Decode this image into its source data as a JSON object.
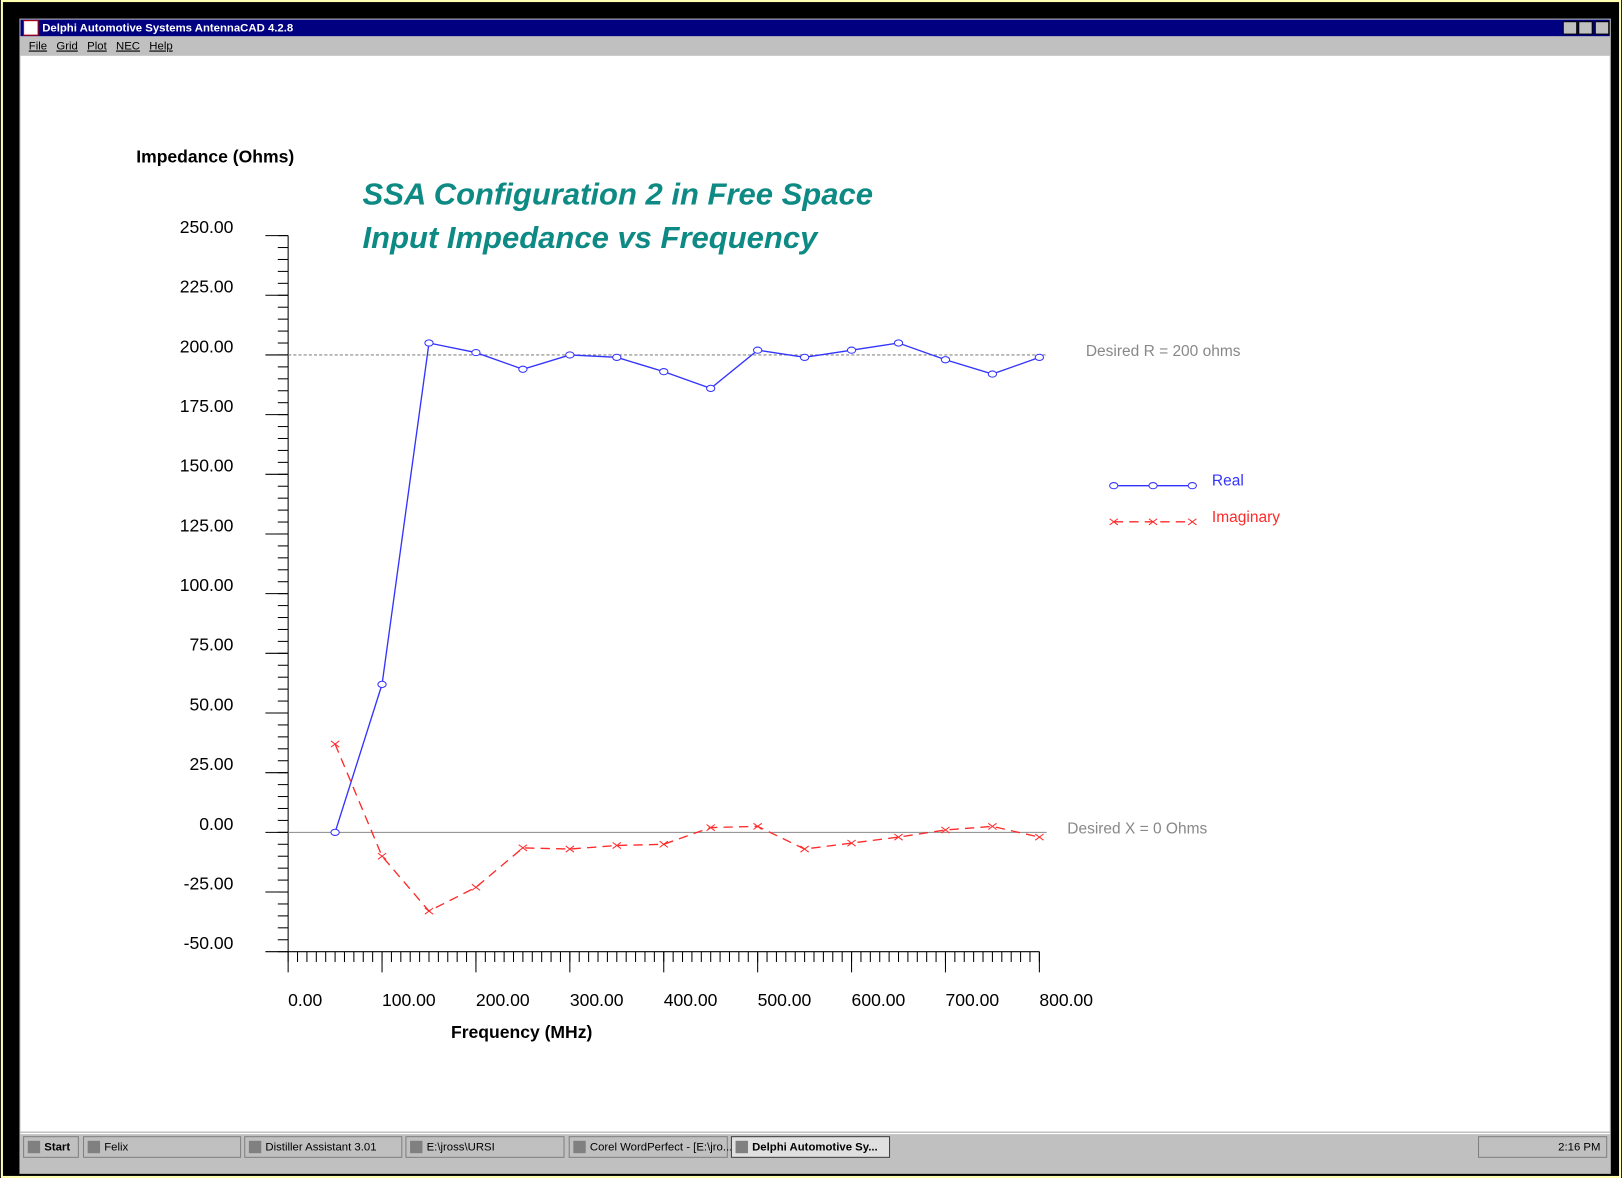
{
  "window": {
    "title": "Delphi Automotive Systems AntennaCAD 4.2.8",
    "menu": [
      "File",
      "Grid",
      "Plot",
      "NEC",
      "Help"
    ]
  },
  "chart_data": {
    "type": "line",
    "title": "SSA Configuration 2 in Free Space",
    "subtitle": "Input Impedance vs Frequency",
    "y_label": "Impedance (Ohms)",
    "x_label": "Frequency (MHz)",
    "x": [
      50,
      100,
      150,
      200,
      250,
      300,
      350,
      400,
      450,
      500,
      550,
      600,
      650,
      700,
      750,
      800
    ],
    "series": [
      {
        "name": "Real",
        "color": "#3333ff",
        "marker": "circle",
        "dash": false,
        "values": [
          0,
          62,
          205,
          201,
          194,
          200,
          199,
          193,
          186,
          202,
          199,
          202,
          205,
          198,
          192,
          199
        ]
      },
      {
        "name": "Imaginary",
        "color": "#ff2a2a",
        "marker": "x",
        "dash": true,
        "values": [
          37,
          -10,
          -33,
          -23,
          -6.5,
          -7,
          -5.5,
          -5,
          2,
          2.5,
          -7,
          -4.5,
          -2,
          1,
          2.5,
          -2
        ]
      }
    ],
    "reference_lines": [
      {
        "value": 200,
        "label": "Desired R = 200 ohms",
        "dash": true
      },
      {
        "value": 0,
        "label": "Desired X = 0 Ohms",
        "dash": false
      }
    ],
    "xlim": [
      0,
      800
    ],
    "xticks": [
      {
        "value": 0,
        "label": "0.00"
      },
      {
        "value": 100,
        "label": "100.00"
      },
      {
        "value": 200,
        "label": "200.00"
      },
      {
        "value": 300,
        "label": "300.00"
      },
      {
        "value": 400,
        "label": "400.00"
      },
      {
        "value": 500,
        "label": "500.00"
      },
      {
        "value": 600,
        "label": "600.00"
      },
      {
        "value": 700,
        "label": "700.00"
      },
      {
        "value": 800,
        "label": "800.00"
      }
    ],
    "ylim": [
      -50,
      250
    ],
    "yticks": [
      {
        "value": -50,
        "label": "-50.00"
      },
      {
        "value": -25,
        "label": "-25.00"
      },
      {
        "value": 0,
        "label": "0.00"
      },
      {
        "value": 25,
        "label": "25.00"
      },
      {
        "value": 50,
        "label": "50.00"
      },
      {
        "value": 75,
        "label": "75.00"
      },
      {
        "value": 100,
        "label": "100.00"
      },
      {
        "value": 125,
        "label": "125.00"
      },
      {
        "value": 150,
        "label": "150.00"
      },
      {
        "value": 175,
        "label": "175.00"
      },
      {
        "value": 200,
        "label": "200.00"
      },
      {
        "value": 225,
        "label": "225.00"
      },
      {
        "value": 250,
        "label": "250.00"
      }
    ],
    "grid": false
  },
  "taskbar": {
    "start": "Start",
    "items": [
      "Felix",
      "Distiller Assistant 3.01",
      "E:\\jross\\URSI",
      "Corel WordPerfect - [E:\\jro...",
      "Delphi Automotive Sy..."
    ],
    "clock": "2:16 PM"
  }
}
